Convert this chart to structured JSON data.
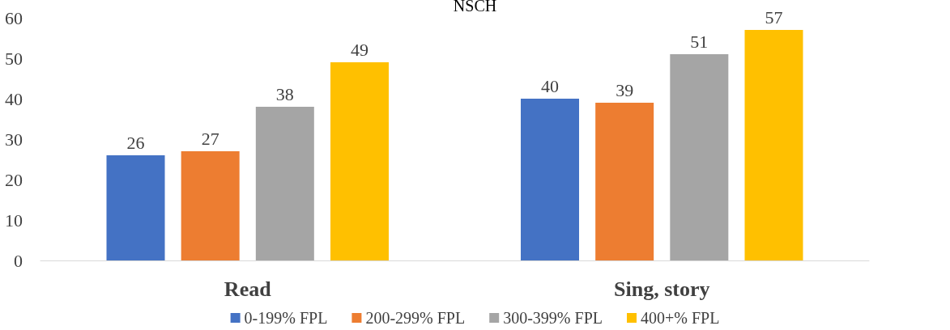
{
  "chart_data": {
    "type": "bar",
    "title": "NSCH",
    "categories": [
      "Read",
      "Sing, story"
    ],
    "series": [
      {
        "name": "0-199% FPL",
        "color": "#4472c4",
        "values": [
          26,
          40
        ]
      },
      {
        "name": "200-299% FPL",
        "color": "#ed7d31",
        "values": [
          27,
          39
        ]
      },
      {
        "name": "300-399% FPL",
        "color": "#a5a5a5",
        "values": [
          38,
          51
        ]
      },
      {
        "name": "400+% FPL",
        "color": "#ffc000",
        "values": [
          49,
          57
        ]
      }
    ],
    "ylim": [
      0,
      60
    ],
    "yticks": [
      0,
      10,
      20,
      30,
      40,
      50,
      60
    ],
    "grid": false,
    "legend": "bottom",
    "data_labels": true
  }
}
